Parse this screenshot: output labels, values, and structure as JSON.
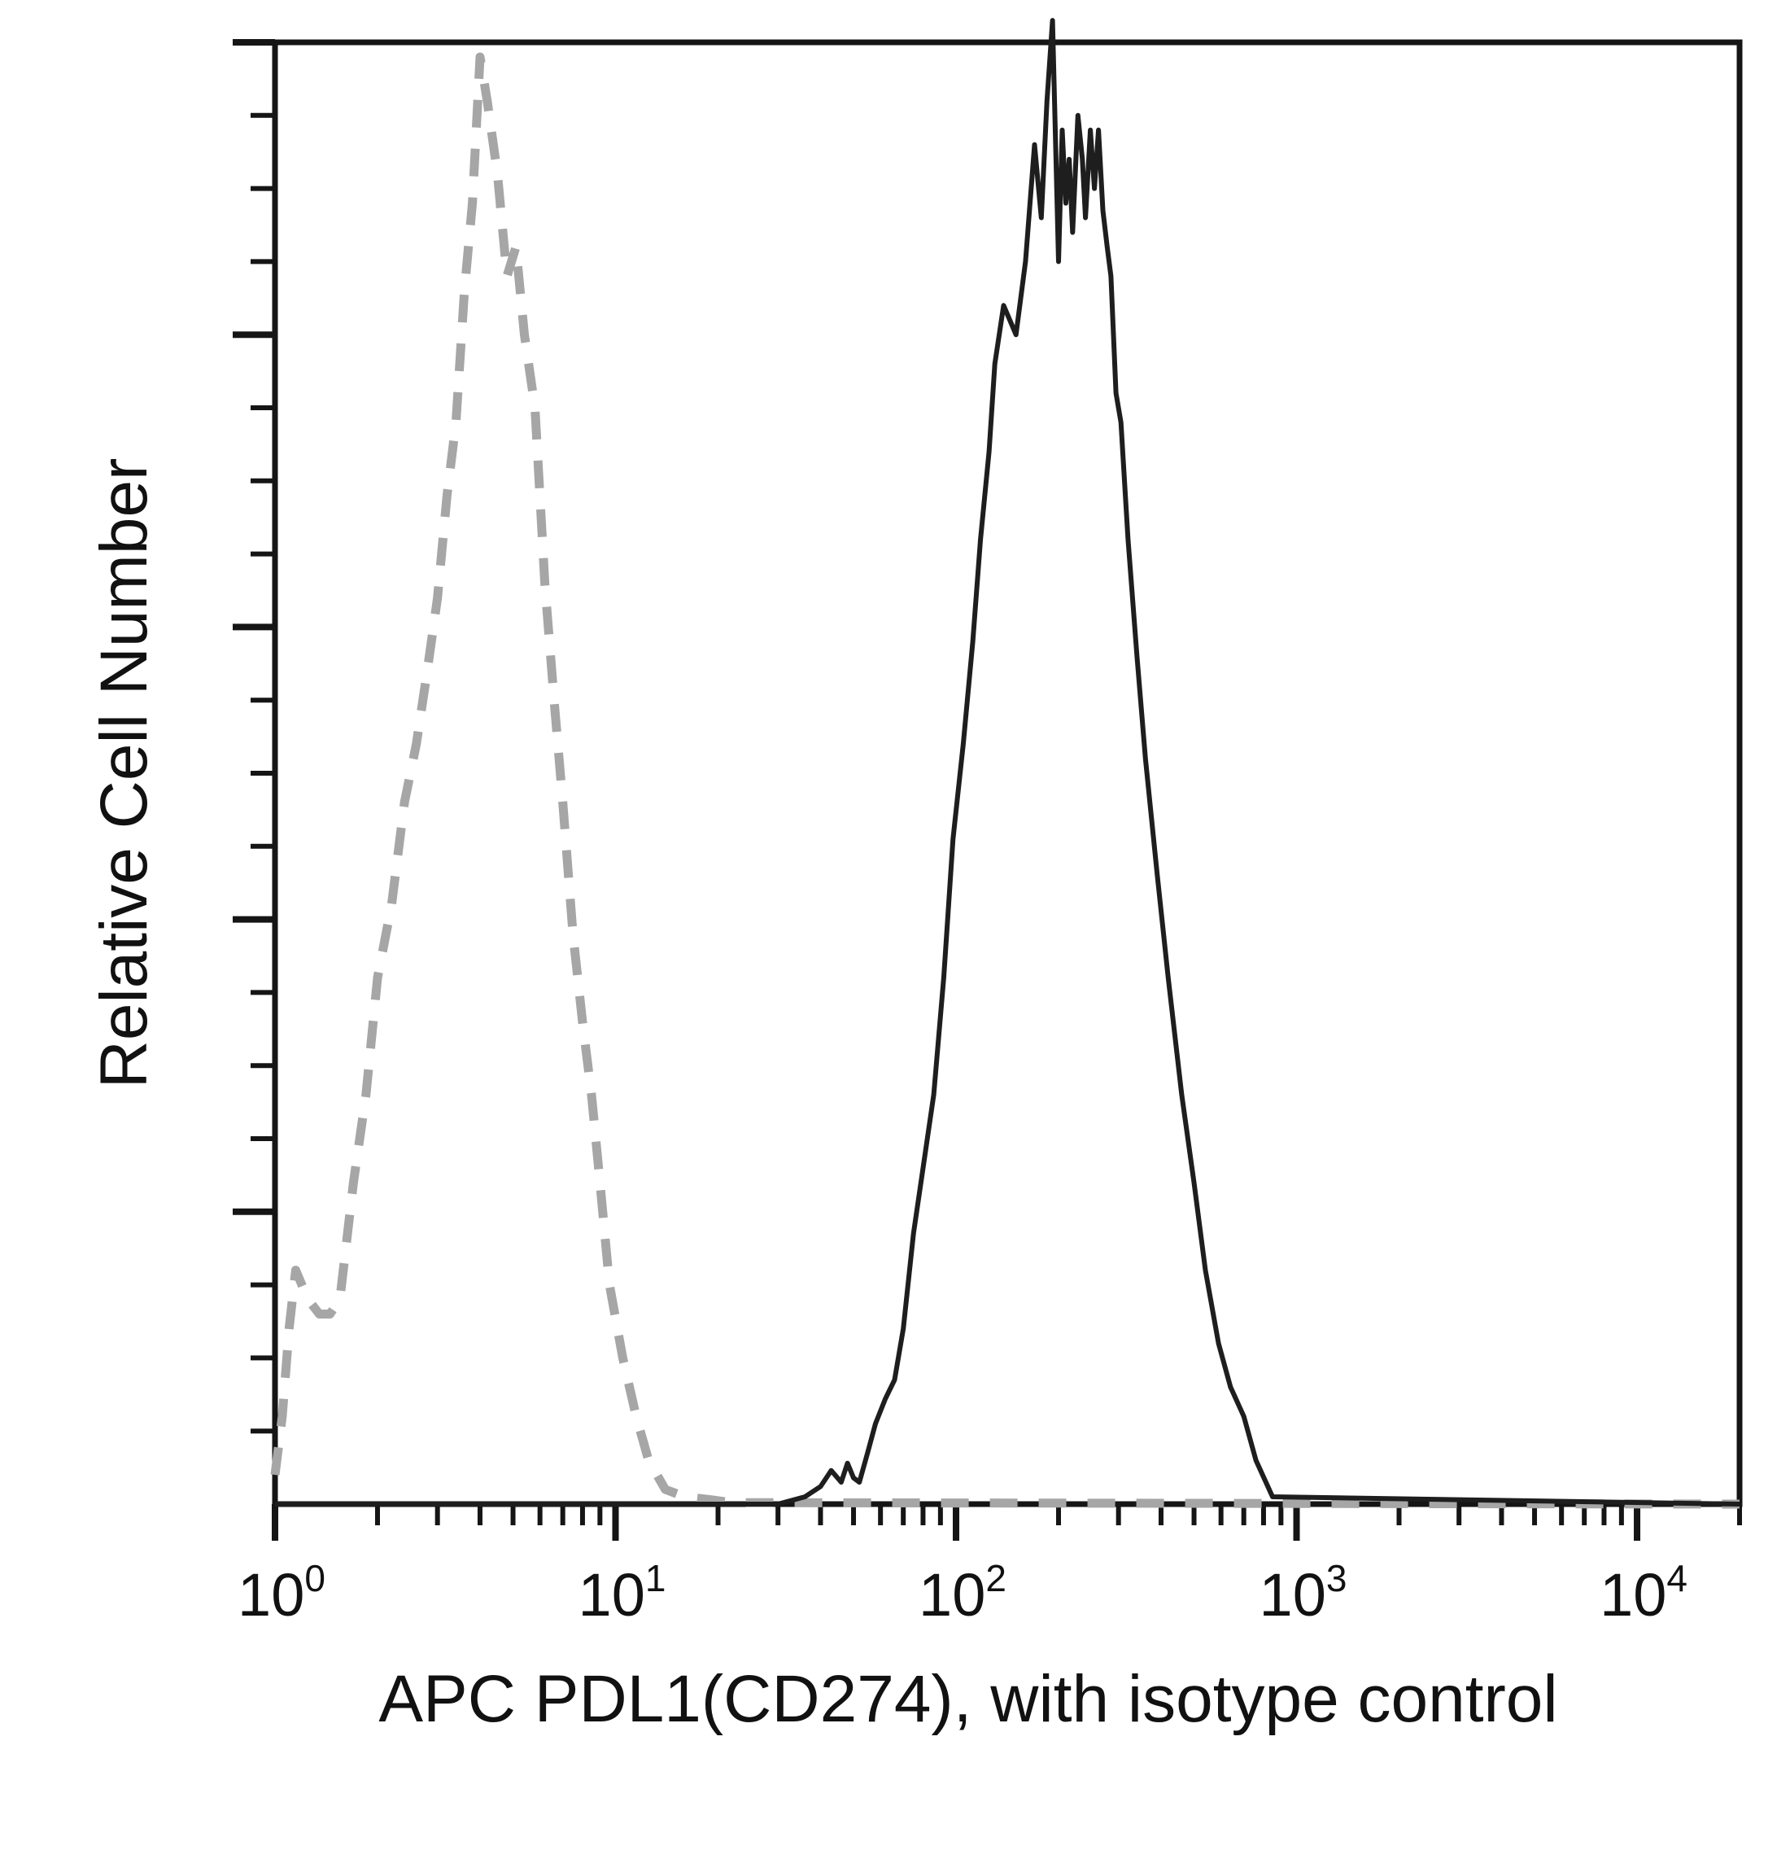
{
  "chart_data": {
    "type": "line",
    "title": "",
    "xlabel": "APC PDL1(CD274), with isotype control",
    "ylabel": "Relative Cell Number",
    "x_scale": "log",
    "xlim": [
      1,
      20000
    ],
    "ylim": [
      0,
      100
    ],
    "x_ticks": [
      {
        "value": 1,
        "base": "10",
        "exp": "0"
      },
      {
        "value": 10,
        "base": "10",
        "exp": "1"
      },
      {
        "value": 100,
        "base": "10",
        "exp": "2"
      },
      {
        "value": 1000,
        "base": "10",
        "exp": "3"
      },
      {
        "value": 10000,
        "base": "10",
        "exp": "4"
      }
    ],
    "y_ticks_labeled": false,
    "grid": false,
    "legend": "none",
    "colors": {
      "frame": "#151515",
      "sample_line": "#1e1e1e",
      "isotype_line": "#a6a6a6"
    },
    "series": [
      {
        "style": "solid",
        "x": [
          1,
          30,
          36,
          40,
          43,
          46,
          48,
          50,
          52,
          55,
          58,
          62,
          66,
          70,
          75,
          80,
          86,
          92,
          98,
          105,
          112,
          118,
          125,
          130,
          138,
          150,
          160,
          170,
          178,
          185,
          192,
          200,
          205,
          210,
          215,
          220,
          228,
          235,
          240,
          248,
          255,
          262,
          270,
          278,
          285,
          295,
          305,
          320,
          340,
          360,
          390,
          420,
          460,
          500,
          540,
          590,
          640,
          700,
          760,
          850,
          20000
        ],
        "y": [
          0,
          0,
          0.5,
          1.2,
          2.3,
          1.5,
          2.8,
          1.8,
          1.5,
          3.5,
          5.5,
          7.2,
          8.5,
          12.0,
          18.5,
          23.0,
          28.0,
          36.0,
          45.5,
          52.0,
          59.0,
          66.0,
          72.0,
          78.0,
          82.0,
          80.0,
          85.0,
          93.0,
          88.0,
          96.0,
          101.5,
          85.0,
          94.0,
          89.0,
          92.0,
          87.0,
          95.0,
          92.0,
          88.0,
          94.0,
          90.0,
          94.0,
          88.5,
          86.0,
          84.0,
          76.0,
          74.0,
          66.0,
          58.0,
          51.0,
          43.0,
          36.0,
          28.0,
          22.0,
          16.0,
          11.0,
          8.0,
          6.0,
          3.0,
          0.5,
          0
        ]
      },
      {
        "style": "dashed",
        "x": [
          1,
          1.05,
          1.1,
          1.15,
          1.25,
          1.35,
          1.45,
          1.55,
          1.7,
          1.85,
          2.0,
          2.2,
          2.4,
          2.6,
          2.8,
          3.0,
          3.2,
          3.4,
          3.6,
          3.8,
          4.0,
          4.2,
          4.5,
          4.8,
          5.1,
          5.4,
          5.8,
          6.2,
          6.6,
          7.0,
          7.5,
          8.0,
          8.5,
          9.0,
          9.6,
          10.5,
          11.5,
          12.5,
          14,
          16,
          19,
          22,
          20000
        ],
        "y": [
          2,
          6,
          12,
          16,
          14,
          13,
          13,
          14,
          22,
          28,
          36,
          41,
          48,
          52,
          57,
          62,
          69,
          74,
          83,
          89,
          99,
          96,
          91,
          84,
          86,
          80,
          75,
          63,
          55,
          48,
          39,
          33,
          28,
          22,
          15,
          10,
          6,
          3,
          1,
          0.5,
          0.3,
          0.1,
          0
        ]
      }
    ]
  }
}
